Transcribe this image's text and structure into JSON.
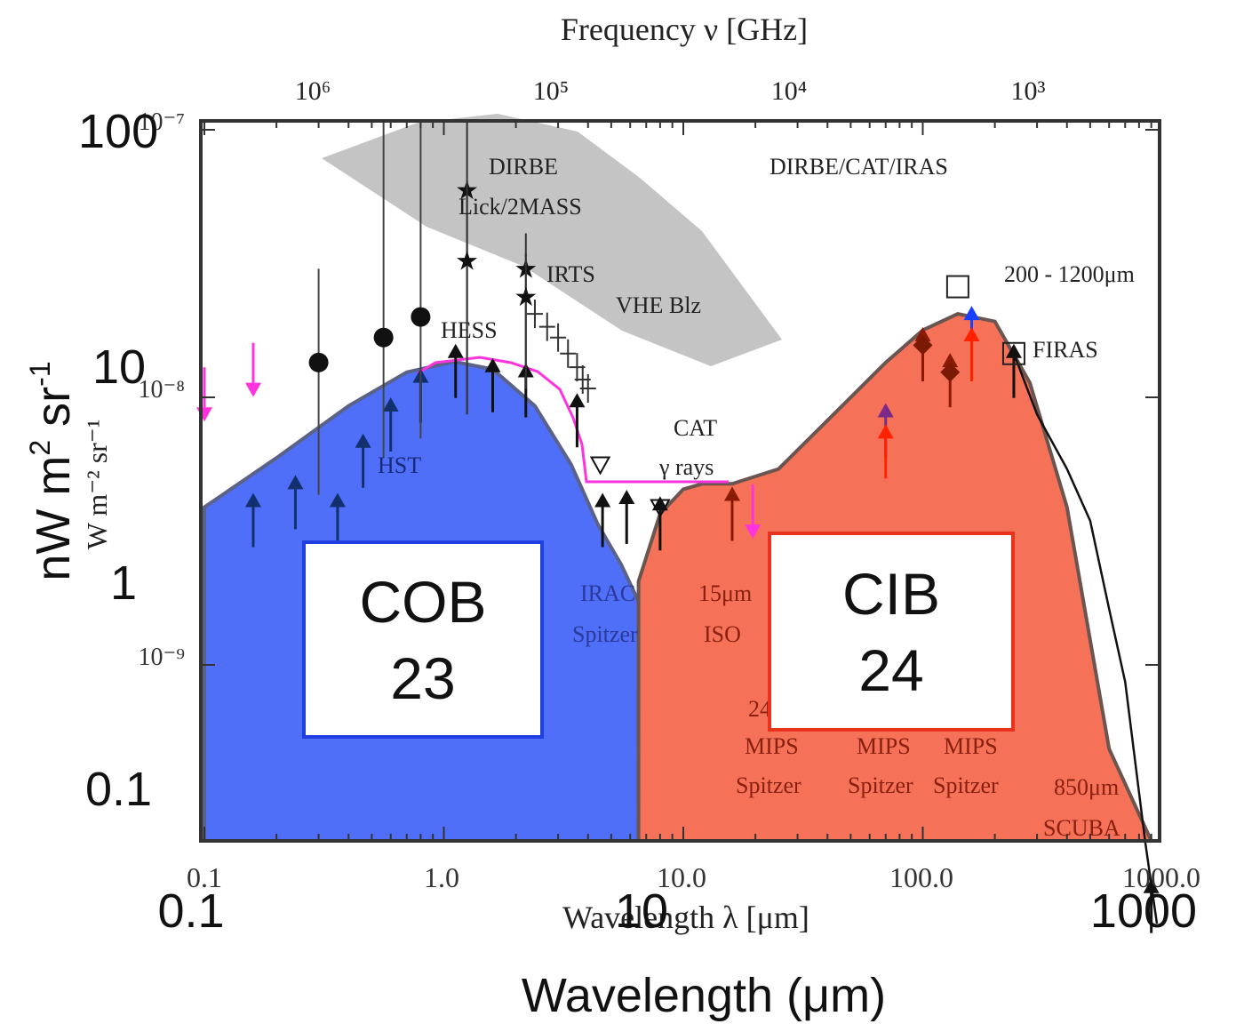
{
  "chart_data": {
    "type": "scatter",
    "title": "",
    "top_axis": {
      "label": "Frequency ν [GHz]",
      "tick_labels": [
        "10⁶",
        "10⁵",
        "10⁴",
        "10³"
      ]
    },
    "bottom_axis_original": {
      "label": "Wavelength λ [μm]",
      "tick_labels": [
        "0.1",
        "1.0",
        "10.0",
        "100.0",
        "1000.0"
      ]
    },
    "left_axis_original": {
      "label": "W m⁻² sr⁻¹",
      "tick_labels": [
        "10⁻⁷",
        "10⁻⁸",
        "10⁻⁹"
      ]
    },
    "overlay_axes": {
      "ylabel_main": "nW m",
      "ylabel_sup1": "2",
      "ylabel_mid": " sr",
      "ylabel_sup2": "-1",
      "ytick_labels": [
        "100",
        "10",
        "1",
        "0.1"
      ],
      "xtick_labels": [
        "0.1",
        "10",
        "1000"
      ],
      "xlabel": "Wavelength (μm)"
    },
    "xlim": [
      0.1,
      1000
    ],
    "ylim_nw": [
      0.027,
      100
    ],
    "xscale": "log",
    "yscale": "log",
    "annotations": {
      "dirbe": "DIRBE",
      "lick": "Lick/2MASS",
      "irts": "IRTS",
      "hess": "HESS",
      "vhe": "VHE Blz",
      "dirbe_cat_iras": "DIRBE/CAT/IRAS",
      "range_200": "200 - 1200μm",
      "firas": "FIRAS",
      "hst": "HST",
      "cat": "CAT",
      "gamma": "γ rays",
      "irac": "IRAC",
      "spitzer1": "Spitzer",
      "m15": "15μm",
      "iso": "ISO",
      "m24": "24",
      "mips1": "MIPS",
      "spitzer2": "Spitzer",
      "mips2": "MIPS",
      "spitzer3": "Spitzer",
      "mips3": "MIPS",
      "spitzer4": "Spitzer",
      "m850": "850μm",
      "scuba": "SCUBA"
    },
    "components": [
      {
        "name": "COB",
        "value": "23",
        "color": "#4f6ff8",
        "border": "#1f3fe0"
      },
      {
        "name": "CIB",
        "value": "24",
        "color": "#f4694f",
        "border": "#e8321c"
      }
    ],
    "cob_curve": [
      [
        0.1,
        3.6
      ],
      [
        0.2,
        5.5
      ],
      [
        0.4,
        8.6
      ],
      [
        0.7,
        11.5
      ],
      [
        1.1,
        12.6
      ],
      [
        1.6,
        11.8
      ],
      [
        2.4,
        8.6
      ],
      [
        3.4,
        5.2
      ],
      [
        4.4,
        3.1
      ],
      [
        5.5,
        2.2
      ],
      [
        6.5,
        1.6
      ]
    ],
    "cib_curve": [
      [
        6.5,
        1.9
      ],
      [
        8,
        3.4
      ],
      [
        10,
        4.2
      ],
      [
        12,
        4.4
      ],
      [
        16,
        4.4
      ],
      [
        25,
        5.0
      ],
      [
        40,
        7.6
      ],
      [
        70,
        12.5
      ],
      [
        100,
        16.5
      ],
      [
        140,
        19.0
      ],
      [
        200,
        17.8
      ],
      [
        280,
        10.5
      ],
      [
        400,
        3.6
      ],
      [
        600,
        0.45
      ],
      [
        900,
        0.027
      ]
    ],
    "cob_points": [
      {
        "x": 0.16,
        "y": 3.6,
        "lower": true
      },
      {
        "x": 0.24,
        "y": 4.2,
        "lower": true
      },
      {
        "x": 0.36,
        "y": 3.6,
        "lower": true
      },
      {
        "x": 0.46,
        "y": 6.0,
        "lower": true
      },
      {
        "x": 0.6,
        "y": 8.2,
        "lower": true
      },
      {
        "x": 0.8,
        "y": 10.5,
        "lower": true
      },
      {
        "x": 1.12,
        "y": 13.0,
        "lower": true
      },
      {
        "x": 1.6,
        "y": 11.5,
        "lower": true
      },
      {
        "x": 2.2,
        "y": 11.0,
        "lower": true
      },
      {
        "x": 3.6,
        "y": 8.5,
        "lower": true
      },
      {
        "x": 4.6,
        "y": 3.6,
        "lower": true
      },
      {
        "x": 5.8,
        "y": 3.7,
        "lower": true
      },
      {
        "x": 8.0,
        "y": 3.5,
        "lower": true
      }
    ],
    "circles": [
      {
        "x": 0.3,
        "y": 12.5,
        "err_lo": 4.0,
        "err_hi": 28
      },
      {
        "x": 0.56,
        "y": 15.5,
        "err_lo": 5.5,
        "err_hi": 100
      },
      {
        "x": 0.8,
        "y": 18.5,
        "err_lo": 6.5,
        "err_hi": 100
      }
    ],
    "stars": [
      {
        "x": 1.25,
        "y": 55,
        "err_lo": 8,
        "err_hi": 100
      },
      {
        "x": 1.25,
        "y": 30,
        "err_lo": 8,
        "err_hi": 60
      },
      {
        "x": 2.2,
        "y": 28,
        "err_lo": 10,
        "err_hi": 38
      },
      {
        "x": 2.2,
        "y": 22,
        "err_lo": 10,
        "err_hi": 32
      }
    ],
    "upper_limits": [
      {
        "x": 0.1,
        "y": 8.5,
        "color": "#ff33dd"
      },
      {
        "x": 0.16,
        "y": 10.5,
        "color": "#ff33dd"
      },
      {
        "x": 19.5,
        "y": 3.1,
        "color": "#ff33dd"
      }
    ],
    "cib_points": [
      {
        "x": 16,
        "y": 3.8,
        "color": "#8b1a05"
      },
      {
        "x": 70,
        "y": 7.8,
        "color": "#7b2a8a"
      },
      {
        "x": 70,
        "y": 6.5,
        "color": "#ff2200"
      },
      {
        "x": 100,
        "y": 15.0,
        "color": "#8b1a05"
      },
      {
        "x": 130,
        "y": 12.0,
        "color": "#8b1a05"
      },
      {
        "x": 160,
        "y": 18.0,
        "color": "#1a40ff"
      },
      {
        "x": 160,
        "y": 15.0,
        "color": "#ff2200"
      },
      {
        "x": 240,
        "y": 13.0,
        "color": "#111111"
      }
    ],
    "firas_line": [
      [
        240,
        13.5
      ],
      [
        300,
        8
      ],
      [
        400,
        5
      ],
      [
        500,
        3.2
      ],
      [
        600,
        1.5
      ],
      [
        700,
        0.8
      ],
      [
        850,
        0.2
      ],
      [
        950,
        0.1
      ]
    ]
  }
}
